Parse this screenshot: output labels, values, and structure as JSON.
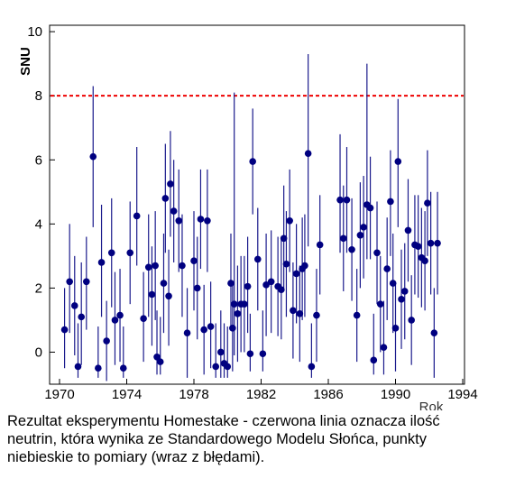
{
  "chart_data": {
    "type": "scatter",
    "ylabel": "SNU",
    "xlabel": "Rok",
    "xlim": [
      1970,
      1994
    ],
    "ylim": [
      -1,
      10.2
    ],
    "x_ticks": [
      "1970",
      "1974",
      "1978",
      "1982",
      "1986",
      "1990",
      "1994"
    ],
    "y_ticks": [
      "0",
      "2",
      "4",
      "6",
      "8",
      "10"
    ],
    "grid": false,
    "reference_line": {
      "y": 8.0,
      "color": "#ee0000",
      "style": "dashed"
    },
    "point_color": "#000080",
    "errorbar_color": "#1a1a8c",
    "series": [
      {
        "points": [
          {
            "x": 1970.3,
            "y": 0.7,
            "lo": -0.5,
            "hi": 2.0
          },
          {
            "x": 1970.6,
            "y": 2.2,
            "lo": 0.6,
            "hi": 4.0
          },
          {
            "x": 1970.9,
            "y": 1.45,
            "lo": -0.1,
            "hi": 3.0
          },
          {
            "x": 1971.1,
            "y": -0.45,
            "lo": -0.8,
            "hi": 0.9
          },
          {
            "x": 1971.3,
            "y": 1.1,
            "lo": -0.4,
            "hi": 2.8
          },
          {
            "x": 1971.6,
            "y": 2.2,
            "lo": 0.7,
            "hi": 3.6
          },
          {
            "x": 1972.0,
            "y": 6.1,
            "lo": 3.9,
            "hi": 8.3
          },
          {
            "x": 1972.3,
            "y": -0.5,
            "lo": -0.8,
            "hi": 0.8
          },
          {
            "x": 1972.5,
            "y": 2.8,
            "lo": 1.1,
            "hi": 4.6
          },
          {
            "x": 1972.8,
            "y": 0.35,
            "lo": -0.9,
            "hi": 1.6
          },
          {
            "x": 1973.1,
            "y": 3.1,
            "lo": 1.4,
            "hi": 4.8
          },
          {
            "x": 1973.3,
            "y": 1.0,
            "lo": -0.4,
            "hi": 2.5
          },
          {
            "x": 1973.6,
            "y": 1.15,
            "lo": -0.3,
            "hi": 2.6
          },
          {
            "x": 1973.8,
            "y": -0.5,
            "lo": -0.8,
            "hi": 0.8
          },
          {
            "x": 1974.2,
            "y": 3.1,
            "lo": 1.5,
            "hi": 4.7
          },
          {
            "x": 1974.6,
            "y": 4.25,
            "lo": 2.7,
            "hi": 6.4
          },
          {
            "x": 1975.0,
            "y": 1.05,
            "lo": -0.3,
            "hi": 2.5
          },
          {
            "x": 1975.3,
            "y": 2.65,
            "lo": 1.1,
            "hi": 4.3
          },
          {
            "x": 1975.5,
            "y": 1.8,
            "lo": 0.2,
            "hi": 3.3
          },
          {
            "x": 1975.7,
            "y": 2.7,
            "lo": 1.0,
            "hi": 4.4
          },
          {
            "x": 1975.8,
            "y": -0.15,
            "lo": -0.7,
            "hi": 1.3
          },
          {
            "x": 1976.0,
            "y": -0.3,
            "lo": -0.7,
            "hi": 1.1
          },
          {
            "x": 1976.2,
            "y": 2.15,
            "lo": 0.6,
            "hi": 3.7
          },
          {
            "x": 1976.3,
            "y": 4.8,
            "lo": 3.1,
            "hi": 6.5
          },
          {
            "x": 1976.5,
            "y": 1.75,
            "lo": 0.2,
            "hi": 3.2
          },
          {
            "x": 1976.6,
            "y": 5.25,
            "lo": 3.6,
            "hi": 6.9
          },
          {
            "x": 1976.8,
            "y": 4.4,
            "lo": 2.8,
            "hi": 6.0
          },
          {
            "x": 1977.1,
            "y": 4.1,
            "lo": 2.5,
            "hi": 5.7
          },
          {
            "x": 1977.3,
            "y": 2.7,
            "lo": 1.1,
            "hi": 4.3
          },
          {
            "x": 1977.6,
            "y": 0.6,
            "lo": -0.8,
            "hi": 2.0
          },
          {
            "x": 1978.0,
            "y": 2.85,
            "lo": 1.3,
            "hi": 4.4
          },
          {
            "x": 1978.2,
            "y": 2.0,
            "lo": 0.4,
            "hi": 3.6
          },
          {
            "x": 1978.4,
            "y": 4.15,
            "lo": 2.6,
            "hi": 5.7
          },
          {
            "x": 1978.6,
            "y": 0.7,
            "lo": -0.7,
            "hi": 2.1
          },
          {
            "x": 1978.8,
            "y": 4.1,
            "lo": 2.5,
            "hi": 5.7
          },
          {
            "x": 1979.0,
            "y": 0.8,
            "lo": -0.5,
            "hi": 2.2
          },
          {
            "x": 1979.3,
            "y": -0.45,
            "lo": -0.8,
            "hi": 0.9
          },
          {
            "x": 1979.6,
            "y": 0.0,
            "lo": -0.8,
            "hi": 1.3
          },
          {
            "x": 1979.8,
            "y": -0.35,
            "lo": -0.8,
            "hi": 0.9
          },
          {
            "x": 1980.0,
            "y": -0.45,
            "lo": -0.8,
            "hi": 0.8
          },
          {
            "x": 1980.2,
            "y": 2.15,
            "lo": 0.7,
            "hi": 3.7
          },
          {
            "x": 1980.3,
            "y": 0.75,
            "lo": -0.6,
            "hi": 2.1
          },
          {
            "x": 1980.4,
            "y": 1.5,
            "lo": -0.1,
            "hi": 8.1
          },
          {
            "x": 1980.6,
            "y": 1.2,
            "lo": -0.3,
            "hi": 2.7
          },
          {
            "x": 1980.8,
            "y": 1.5,
            "lo": 0.0,
            "hi": 3.0
          },
          {
            "x": 1981.0,
            "y": 1.5,
            "lo": 0.0,
            "hi": 3.0
          },
          {
            "x": 1981.2,
            "y": 2.05,
            "lo": 0.6,
            "hi": 3.6
          },
          {
            "x": 1981.35,
            "y": -0.05,
            "lo": -0.6,
            "hi": 1.2
          },
          {
            "x": 1981.5,
            "y": 5.95,
            "lo": 4.3,
            "hi": 7.6
          },
          {
            "x": 1981.8,
            "y": 2.9,
            "lo": 1.3,
            "hi": 4.5
          },
          {
            "x": 1982.1,
            "y": -0.05,
            "lo": -0.6,
            "hi": 1.3
          },
          {
            "x": 1982.3,
            "y": 2.1,
            "lo": 0.5,
            "hi": 3.7
          },
          {
            "x": 1982.6,
            "y": 2.2,
            "lo": 0.6,
            "hi": 3.8
          },
          {
            "x": 1983.0,
            "y": 2.05,
            "lo": 0.5,
            "hi": 3.6
          },
          {
            "x": 1983.2,
            "y": 1.95,
            "lo": 0.4,
            "hi": 3.5
          },
          {
            "x": 1983.35,
            "y": 3.55,
            "lo": 1.9,
            "hi": 5.2
          },
          {
            "x": 1983.5,
            "y": 2.75,
            "lo": 1.1,
            "hi": 4.4
          },
          {
            "x": 1983.7,
            "y": 4.1,
            "lo": 2.5,
            "hi": 5.7
          },
          {
            "x": 1983.9,
            "y": 1.3,
            "lo": -0.2,
            "hi": 2.8
          },
          {
            "x": 1984.1,
            "y": 2.45,
            "lo": 0.9,
            "hi": 4.0
          },
          {
            "x": 1984.3,
            "y": 1.2,
            "lo": -0.3,
            "hi": 2.7
          },
          {
            "x": 1984.45,
            "y": 2.6,
            "lo": 1.0,
            "hi": 4.2
          },
          {
            "x": 1984.6,
            "y": 2.7,
            "lo": 1.1,
            "hi": 4.3
          },
          {
            "x": 1984.8,
            "y": 6.2,
            "lo": 3.3,
            "hi": 9.3
          },
          {
            "x": 1985.0,
            "y": -0.45,
            "lo": -0.8,
            "hi": 0.9
          },
          {
            "x": 1985.3,
            "y": 1.15,
            "lo": -0.3,
            "hi": 2.6
          },
          {
            "x": 1985.5,
            "y": 3.35,
            "lo": 1.8,
            "hi": 4.9
          },
          {
            "x": 1986.7,
            "y": 4.75,
            "lo": 3.1,
            "hi": 6.8
          },
          {
            "x": 1986.9,
            "y": 3.55,
            "lo": 1.9,
            "hi": 5.2
          },
          {
            "x": 1987.1,
            "y": 4.75,
            "lo": 3.1,
            "hi": 6.4
          },
          {
            "x": 1987.4,
            "y": 3.2,
            "lo": 1.6,
            "hi": 4.8
          },
          {
            "x": 1987.7,
            "y": 1.15,
            "lo": -0.3,
            "hi": 2.6
          },
          {
            "x": 1987.9,
            "y": 3.65,
            "lo": 2.0,
            "hi": 5.3
          },
          {
            "x": 1988.1,
            "y": 3.9,
            "lo": 2.3,
            "hi": 5.5
          },
          {
            "x": 1988.3,
            "y": 4.6,
            "lo": 2.9,
            "hi": 9.0
          },
          {
            "x": 1988.5,
            "y": 4.5,
            "lo": 2.9,
            "hi": 6.1
          },
          {
            "x": 1988.7,
            "y": -0.25,
            "lo": -0.7,
            "hi": 1.2
          },
          {
            "x": 1988.9,
            "y": 3.1,
            "lo": 1.5,
            "hi": 4.7
          },
          {
            "x": 1989.1,
            "y": 1.5,
            "lo": 0.0,
            "hi": 3.0
          },
          {
            "x": 1989.3,
            "y": 0.15,
            "lo": -0.7,
            "hi": 1.6
          },
          {
            "x": 1989.5,
            "y": 2.6,
            "lo": 1.0,
            "hi": 4.2
          },
          {
            "x": 1989.7,
            "y": 4.7,
            "lo": 3.0,
            "hi": 6.3
          },
          {
            "x": 1989.85,
            "y": 2.15,
            "lo": 0.6,
            "hi": 3.7
          },
          {
            "x": 1990.0,
            "y": 0.75,
            "lo": -0.6,
            "hi": 2.1
          },
          {
            "x": 1990.15,
            "y": 5.95,
            "lo": 3.9,
            "hi": 7.9
          },
          {
            "x": 1990.35,
            "y": 1.65,
            "lo": 0.1,
            "hi": 3.2
          },
          {
            "x": 1990.55,
            "y": 1.9,
            "lo": 0.4,
            "hi": 3.4
          },
          {
            "x": 1990.75,
            "y": 3.8,
            "lo": 2.2,
            "hi": 5.4
          },
          {
            "x": 1990.95,
            "y": 1.0,
            "lo": -0.4,
            "hi": 2.4
          },
          {
            "x": 1991.15,
            "y": 3.35,
            "lo": 1.8,
            "hi": 4.9
          },
          {
            "x": 1991.35,
            "y": 3.3,
            "lo": 1.7,
            "hi": 4.9
          },
          {
            "x": 1991.55,
            "y": 2.95,
            "lo": 1.4,
            "hi": 4.5
          },
          {
            "x": 1991.75,
            "y": 2.85,
            "lo": 1.3,
            "hi": 4.4
          },
          {
            "x": 1991.9,
            "y": 4.65,
            "lo": 3.0,
            "hi": 6.3
          },
          {
            "x": 1992.1,
            "y": 3.4,
            "lo": 1.8,
            "hi": 5.0
          },
          {
            "x": 1992.3,
            "y": 0.6,
            "lo": -0.8,
            "hi": 2.0
          },
          {
            "x": 1992.5,
            "y": 3.4,
            "lo": 1.8,
            "hi": 5.0
          }
        ]
      }
    ]
  },
  "caption": {
    "line1": "Rezultat eksperymentu Homestake - czerwona linia oznacza ilość",
    "line2": "neutrin, która wynika ze Standardowego Modelu Słońca, punkty",
    "line3": "niebieskie to pomiary (wraz z błędami)."
  }
}
